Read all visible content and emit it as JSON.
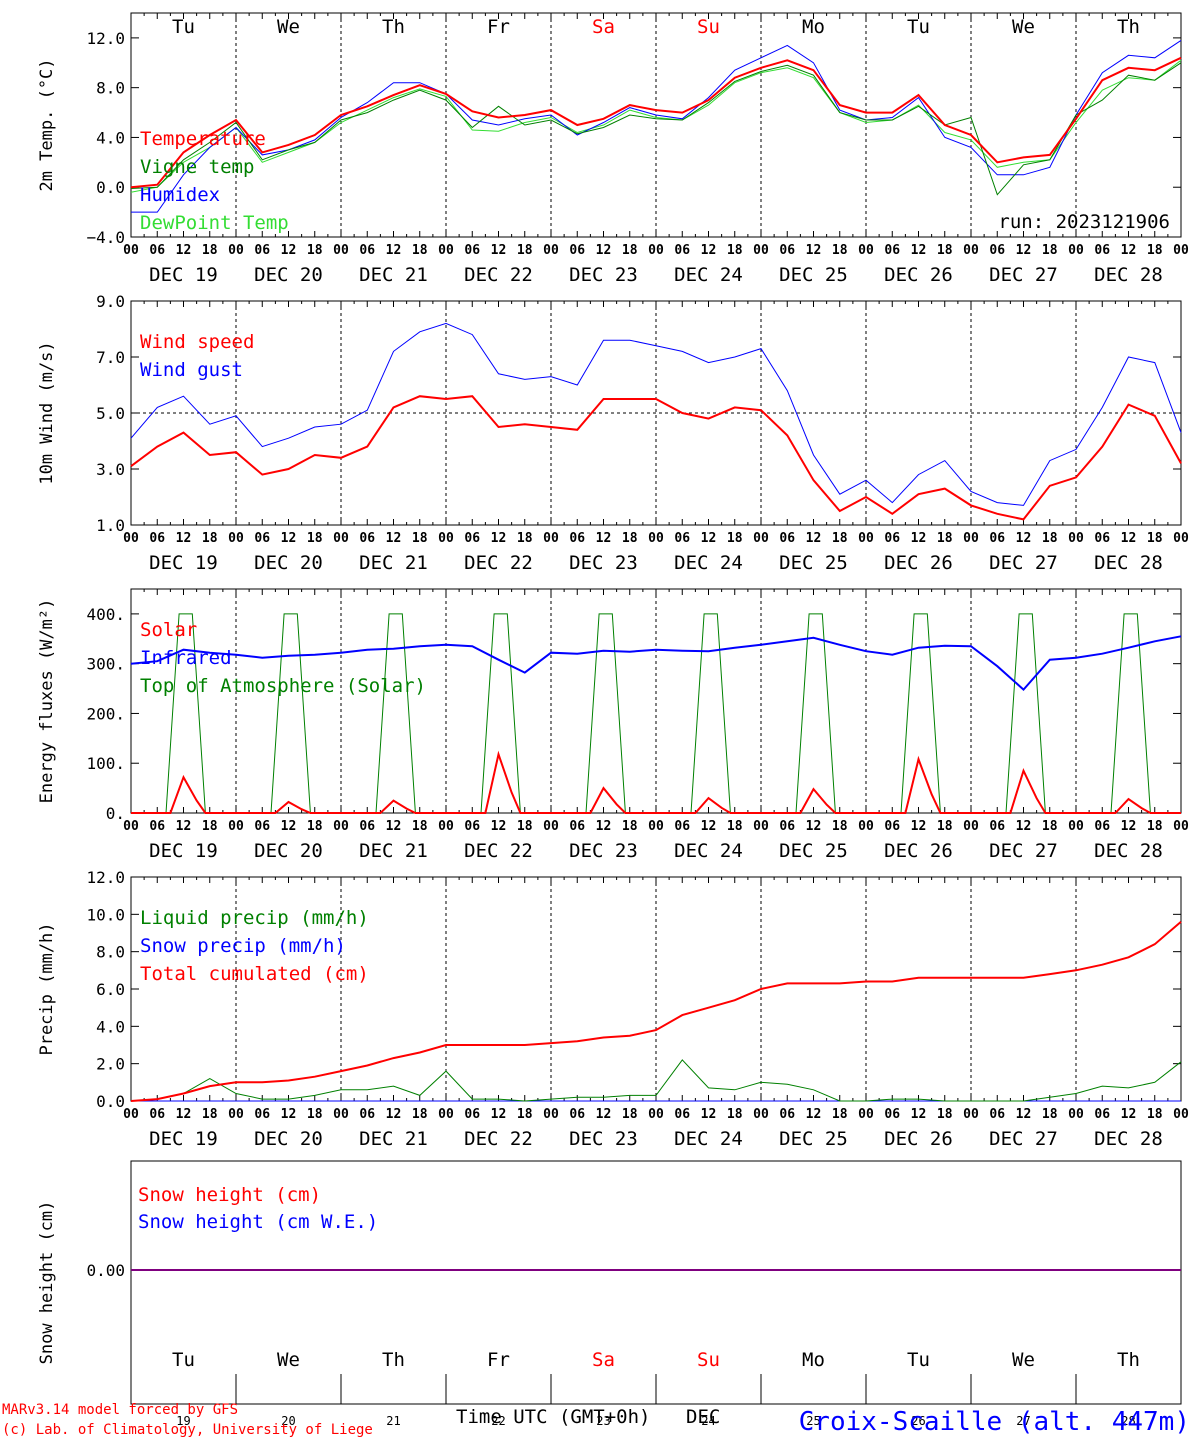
{
  "days": [
    "Tu",
    "We",
    "Th",
    "Fr",
    "Sa",
    "Su",
    "Mo",
    "Tu",
    "We",
    "Th"
  ],
  "weekend_color": "#ff0000",
  "weekend_index": [
    4,
    5
  ],
  "hour_ticks": [
    "00",
    "06",
    "12",
    "18"
  ],
  "date_labels": [
    "DEC 19",
    "DEC 20",
    "DEC 21",
    "DEC 22",
    "DEC 23",
    "DEC 24",
    "DEC 25",
    "DEC 26",
    "DEC 27",
    "DEC 28"
  ],
  "bottom_days": [
    "19",
    "20",
    "21",
    "22",
    "23",
    "24",
    "25",
    "26",
    "27",
    "28"
  ],
  "xlabel": "Time UTC (GMT+0h)",
  "xunit": "DEC",
  "station": "Croix-Scaille (alt. 447m)",
  "credit_line1": "MARv3.14 model forced by GFS",
  "credit_line2": "(c) Lab. of Climatology, University of Liege",
  "run_label": "run: 2023121906",
  "colors": {
    "red": "#ff0000",
    "green": "#008000",
    "blue": "#0000ff",
    "lightgreen": "#33dd33",
    "purple": "#7f007f"
  },
  "chart_data": [
    {
      "type": "line",
      "ylabel": "2m Temp. (°C)",
      "ylim": [
        -4,
        14
      ],
      "yticks": [
        -4,
        0,
        4,
        8,
        12
      ],
      "ytick_labels": [
        "−4.0",
        "0.0",
        "4.0",
        "8.0",
        "12.0"
      ],
      "x_hours": [
        0,
        6,
        12,
        18,
        24,
        30,
        36,
        42,
        48,
        54,
        60,
        66,
        72,
        78,
        84,
        90,
        96,
        102,
        108,
        114,
        120,
        126,
        132,
        138,
        144,
        150,
        156,
        162,
        168,
        174,
        180,
        186,
        192,
        198,
        204,
        210,
        216,
        222,
        228,
        234,
        240
      ],
      "legend_placement": "left",
      "series": [
        {
          "name": "Temperature",
          "color": "#ff0000",
          "values": [
            0.0,
            0.2,
            2.8,
            4.2,
            5.4,
            2.8,
            3.4,
            4.2,
            5.8,
            6.5,
            7.4,
            8.2,
            7.5,
            6.1,
            5.6,
            5.8,
            6.2,
            5.0,
            5.5,
            6.6,
            6.2,
            6.0,
            7.0,
            8.8,
            9.6,
            10.2,
            9.4,
            6.6,
            6.0,
            6.0,
            7.4,
            5.0,
            4.2,
            2.0,
            2.4,
            2.6,
            5.5,
            8.6,
            9.6,
            9.4,
            10.4
          ]
        },
        {
          "name": "Vigne temp",
          "color": "#008000",
          "values": [
            -0.1,
            0.0,
            2.2,
            3.6,
            5.2,
            2.2,
            3.0,
            3.6,
            5.4,
            6.0,
            7.0,
            7.8,
            7.0,
            4.8,
            6.5,
            5.0,
            5.4,
            4.3,
            4.8,
            5.8,
            5.5,
            5.4,
            6.8,
            8.5,
            9.3,
            9.8,
            9.0,
            6.0,
            5.4,
            5.4,
            6.5,
            5.0,
            5.6,
            -0.6,
            1.8,
            2.2,
            5.8,
            7.0,
            9.0,
            8.6,
            10.0
          ]
        },
        {
          "name": "Humidex",
          "color": "#0000ff",
          "values": [
            -2.0,
            -2.0,
            1.0,
            3.2,
            4.8,
            2.6,
            3.0,
            3.8,
            5.6,
            6.8,
            8.4,
            8.4,
            7.5,
            5.4,
            5.0,
            5.5,
            5.8,
            4.2,
            5.2,
            6.4,
            5.8,
            5.5,
            7.2,
            9.4,
            10.4,
            11.4,
            10.0,
            6.2,
            5.4,
            5.6,
            7.2,
            4.0,
            3.2,
            1.0,
            1.0,
            1.6,
            5.8,
            9.2,
            10.6,
            10.4,
            11.8
          ]
        },
        {
          "name": "DewPoint Temp",
          "color": "#33dd33",
          "values": [
            -0.4,
            0.0,
            2.0,
            3.2,
            4.8,
            2.0,
            2.8,
            3.6,
            5.2,
            6.2,
            7.2,
            7.9,
            7.3,
            4.6,
            4.5,
            5.2,
            5.6,
            4.4,
            5.0,
            6.2,
            5.6,
            5.4,
            6.6,
            8.4,
            9.2,
            9.6,
            8.8,
            6.0,
            5.2,
            5.4,
            6.6,
            4.4,
            3.8,
            1.6,
            2.0,
            2.2,
            5.2,
            7.8,
            8.8,
            8.6,
            10.2
          ]
        }
      ]
    },
    {
      "type": "line",
      "ylabel": "10m Wind (m/s)",
      "ylim": [
        1,
        9
      ],
      "yticks": [
        1,
        3,
        5,
        7,
        9
      ],
      "ytick_labels": [
        "1.0",
        "3.0",
        "5.0",
        "7.0",
        "9.0"
      ],
      "dashed_hline": 5,
      "x_hours": [
        0,
        6,
        12,
        18,
        24,
        30,
        36,
        42,
        48,
        54,
        60,
        66,
        72,
        78,
        84,
        90,
        96,
        102,
        108,
        114,
        120,
        126,
        132,
        138,
        144,
        150,
        156,
        162,
        168,
        174,
        180,
        186,
        192,
        198,
        204,
        210,
        216,
        222,
        228,
        234,
        240
      ],
      "legend_placement": "top-left",
      "series": [
        {
          "name": "Wind speed",
          "color": "#ff0000",
          "values": [
            3.1,
            3.8,
            4.3,
            3.5,
            3.6,
            2.8,
            3.0,
            3.5,
            3.4,
            3.8,
            5.2,
            5.6,
            5.5,
            5.6,
            4.5,
            4.6,
            4.5,
            4.4,
            5.5,
            5.5,
            5.5,
            5.0,
            4.8,
            5.2,
            5.1,
            4.2,
            2.6,
            1.5,
            2.0,
            1.4,
            2.1,
            2.3,
            1.7,
            1.4,
            1.2,
            2.4,
            2.7,
            3.8,
            5.3,
            4.9,
            3.2
          ]
        },
        {
          "name": "Wind gust",
          "color": "#0000ff",
          "values": [
            4.1,
            5.2,
            5.6,
            4.6,
            4.9,
            3.8,
            4.1,
            4.5,
            4.6,
            5.1,
            7.2,
            7.9,
            8.2,
            7.8,
            6.4,
            6.2,
            6.3,
            6.0,
            7.6,
            7.6,
            7.4,
            7.2,
            6.8,
            7.0,
            7.3,
            5.8,
            3.5,
            2.1,
            2.6,
            1.8,
            2.8,
            3.3,
            2.2,
            1.8,
            1.7,
            3.3,
            3.7,
            5.2,
            7.0,
            6.8,
            4.3
          ]
        }
      ]
    },
    {
      "type": "line",
      "ylabel": "Energy fluxes (W/m²)",
      "ylim": [
        0,
        450
      ],
      "yticks": [
        0,
        100,
        200,
        300,
        400
      ],
      "ytick_labels": [
        "0.",
        "100.",
        "200.",
        "300.",
        "400."
      ],
      "legend_placement": "top-left",
      "daily_peaks": {
        "solar": [
          72,
          22,
          25,
          118,
          50,
          30,
          48,
          108,
          85,
          28
        ],
        "top_of_atmosphere": [
          400,
          400,
          400,
          400,
          400,
          400,
          400,
          400,
          400,
          400
        ]
      },
      "series": [
        {
          "name": "Solar",
          "color": "#ff0000"
        },
        {
          "name": "Infrared",
          "color": "#0000ff",
          "x_hours": [
            0,
            6,
            12,
            18,
            24,
            30,
            36,
            42,
            48,
            54,
            60,
            66,
            72,
            78,
            84,
            90,
            96,
            102,
            108,
            114,
            120,
            126,
            132,
            138,
            144,
            150,
            156,
            162,
            168,
            174,
            180,
            186,
            192,
            198,
            204,
            210,
            216,
            222,
            228,
            234,
            240
          ],
          "values": [
            300,
            305,
            328,
            322,
            318,
            312,
            316,
            318,
            322,
            328,
            330,
            335,
            338,
            335,
            308,
            282,
            322,
            320,
            326,
            324,
            328,
            326,
            325,
            332,
            338,
            345,
            352,
            338,
            325,
            318,
            332,
            336,
            335,
            295,
            248,
            308,
            312,
            320,
            332,
            345,
            355
          ]
        },
        {
          "name": "Top of Atmosphere (Solar)",
          "color": "#008000"
        }
      ]
    },
    {
      "type": "line",
      "ylabel": "Precip (mm/h)",
      "ylim": [
        0,
        12
      ],
      "yticks": [
        0,
        2,
        4,
        6,
        8,
        10,
        12
      ],
      "ytick_labels": [
        "0.0",
        "2.0",
        "4.0",
        "6.0",
        "8.0",
        "10.0",
        "12.0"
      ],
      "x_hours": [
        0,
        6,
        12,
        18,
        24,
        30,
        36,
        42,
        48,
        54,
        60,
        66,
        72,
        78,
        84,
        90,
        96,
        102,
        108,
        114,
        120,
        126,
        132,
        138,
        144,
        150,
        156,
        162,
        168,
        174,
        180,
        186,
        192,
        198,
        204,
        210,
        216,
        222,
        228,
        234,
        240
      ],
      "legend_placement": "top-left",
      "series": [
        {
          "name": "Liquid precip (mm/h)",
          "color": "#008000",
          "values": [
            0.0,
            0.1,
            0.4,
            1.2,
            0.4,
            0.1,
            0.1,
            0.3,
            0.6,
            0.6,
            0.8,
            0.3,
            1.6,
            0.1,
            0.1,
            0.0,
            0.1,
            0.2,
            0.2,
            0.3,
            0.3,
            2.2,
            0.7,
            0.6,
            1.0,
            0.9,
            0.6,
            0.0,
            0.0,
            0.1,
            0.1,
            0.0,
            0.0,
            0.0,
            0.0,
            0.2,
            0.4,
            0.8,
            0.7,
            1.0,
            2.1
          ]
        },
        {
          "name": "Snow precip (mm/h)",
          "color": "#0000ff",
          "values": [
            0,
            0,
            0,
            0,
            0,
            0,
            0,
            0,
            0,
            0,
            0,
            0,
            0,
            0,
            0,
            0,
            0,
            0,
            0,
            0,
            0,
            0,
            0,
            0,
            0,
            0,
            0,
            0,
            0,
            0,
            0,
            0,
            0,
            0,
            0,
            0,
            0,
            0,
            0,
            0,
            0
          ]
        },
        {
          "name": "Total cumulated (cm)",
          "color": "#ff0000",
          "values": [
            0.0,
            0.1,
            0.4,
            0.8,
            1.0,
            1.0,
            1.1,
            1.3,
            1.6,
            1.9,
            2.3,
            2.6,
            3.0,
            3.0,
            3.0,
            3.0,
            3.1,
            3.2,
            3.4,
            3.5,
            3.8,
            4.6,
            5.0,
            5.4,
            6.0,
            6.3,
            6.3,
            6.3,
            6.4,
            6.4,
            6.6,
            6.6,
            6.6,
            6.6,
            6.6,
            6.8,
            7.0,
            7.3,
            7.7,
            8.4,
            9.6
          ]
        }
      ]
    },
    {
      "type": "line",
      "ylabel": "Snow height (cm)",
      "ylim": [
        -1,
        1
      ],
      "yticks": [
        0
      ],
      "ytick_labels": [
        "0.00"
      ],
      "x_hours": [
        0,
        240
      ],
      "legend_placement": "top-left",
      "series": [
        {
          "name": "Snow height (cm)",
          "color": "#ff0000",
          "values": [
            0,
            0
          ]
        },
        {
          "name": "Snow height (cm W.E.)",
          "color": "#0000ff",
          "values": [
            0,
            0
          ]
        }
      ]
    }
  ]
}
